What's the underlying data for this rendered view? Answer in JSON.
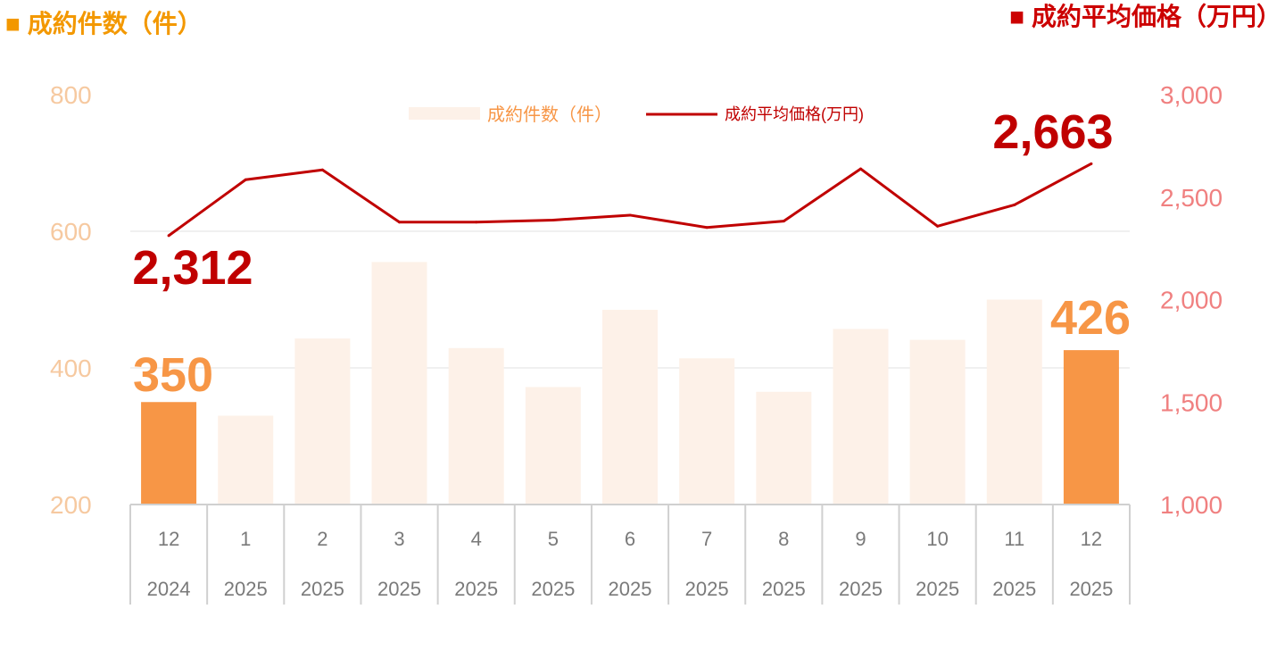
{
  "colors": {
    "bar": "#fdf1e8",
    "bar_highlight": "#f79646",
    "line": "#c00000",
    "left_title": "#f39800",
    "right_title": "#cc0000",
    "left_axis": "#f6c9a0",
    "right_axis": "#f08080",
    "grid": "#e0e0e0",
    "table_border": "#d0d0d0",
    "category_text": "#7a7a7a"
  },
  "left_title": "■ 成約件数（件）",
  "right_title": "■ 成約平均価格（万円）",
  "chart_data": {
    "type": "bar",
    "categories": [
      "12",
      "1",
      "2",
      "3",
      "4",
      "5",
      "6",
      "7",
      "8",
      "9",
      "10",
      "11",
      "12"
    ],
    "category_years": [
      "2024",
      "2025",
      "2025",
      "2025",
      "2025",
      "2025",
      "2025",
      "2025",
      "2025",
      "2025",
      "2025",
      "2025",
      "2025"
    ],
    "series": [
      {
        "name": "成約件数（件）",
        "type": "bar",
        "axis": "left",
        "values": [
          350,
          330,
          443,
          555,
          429,
          372,
          485,
          414,
          365,
          457,
          441,
          500,
          426
        ],
        "highlight": [
          0,
          12
        ]
      },
      {
        "name": "成約平均価格(万円)",
        "type": "line",
        "axis": "right",
        "values": [
          2312,
          2585,
          2633,
          2378,
          2378,
          2388,
          2412,
          2352,
          2383,
          2638,
          2358,
          2462,
          2663
        ]
      }
    ],
    "left_axis": {
      "ylim": [
        200,
        800
      ],
      "ticks": [
        "200",
        "400",
        "600",
        "800"
      ]
    },
    "right_axis": {
      "ylim": [
        1000,
        3000
      ],
      "ticks": [
        "1,000",
        "1,500",
        "2,000",
        "2,500",
        "3,000"
      ]
    },
    "callouts": {
      "bar_first": "350",
      "bar_last": "426",
      "line_first": "2,312",
      "line_last": "2,663"
    },
    "grid": true,
    "legend": "top-center"
  }
}
